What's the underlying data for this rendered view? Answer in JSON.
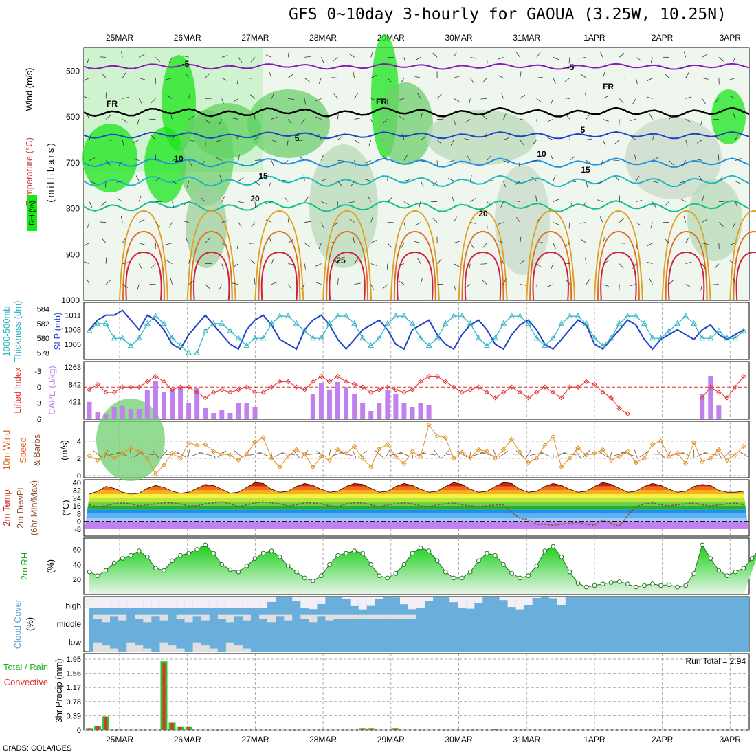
{
  "title": "GFS 0~10day 3-hourly for GAOUA (3.25W, 10.25N)",
  "credit": "GrADS: COLA/IGES",
  "dates": [
    "25MAR",
    "26MAR",
    "27MAR",
    "28MAR",
    "29MAR",
    "30MAR",
    "31MAR",
    "1APR",
    "2APR",
    "3APR"
  ],
  "run_total": "Run Total = 2.94",
  "colors": {
    "rh_green": "#19e619",
    "line_blue": "#2042c8",
    "line_cyan": "#2ab0c0",
    "cape_purple": "#c080f0",
    "li_red": "#e03030",
    "wind_orange": "#e09020",
    "temp_dew": "#905030",
    "cloud_blue": "#6aaedc"
  },
  "panels": {
    "profile": {
      "labels": [
        "Wind (m/s)",
        "Temperature (°C)",
        "RH (%)",
        "(millibars)"
      ],
      "yticks": [
        "500",
        "600",
        "700",
        "800",
        "900",
        "1000"
      ],
      "contour_labels": [
        "-5",
        "FR",
        "5",
        "10",
        "15",
        "20",
        "25"
      ]
    },
    "slp": {
      "labels": [
        "1000-500mb",
        "Thickness (dm)",
        "SLP (mb)"
      ],
      "left_ticks": [
        "584",
        "582",
        "580",
        "578"
      ],
      "right_ticks": [
        "1011",
        "1008",
        "1005"
      ]
    },
    "cape": {
      "labels": [
        "Lifted Index",
        "CAPE (J/kg)"
      ],
      "left_ticks": [
        "-3",
        "0",
        "3",
        "6"
      ],
      "right_ticks": [
        "1263",
        "842",
        "421"
      ]
    },
    "wind": {
      "labels": [
        "10m Wind",
        "Speed",
        "& Barbs",
        "(m/s)"
      ],
      "yticks": [
        "4",
        "2",
        "0"
      ]
    },
    "temp": {
      "labels": [
        "2m Temp",
        "2m DewPt",
        "(6hr Min/Max)",
        "(°C)"
      ],
      "yticks": [
        "40",
        "32",
        "24",
        "16",
        "8",
        "0",
        "-8"
      ]
    },
    "rh": {
      "labels": [
        "2m RH",
        "(%)"
      ],
      "yticks": [
        "60",
        "40",
        "20"
      ]
    },
    "cloud": {
      "labels": [
        "Cloud Cover",
        "(%)"
      ],
      "rows": [
        "high",
        "middle",
        "low"
      ]
    },
    "precip": {
      "labels": [
        "Total / Rain",
        "Convective",
        "3hr Precip (mm)"
      ],
      "yticks": [
        "1.95",
        "1.56",
        "1.17",
        "0.78",
        "0.39",
        "0"
      ]
    }
  },
  "chart_data": [
    {
      "type": "line",
      "title": "Thickness / SLP",
      "series": [
        {
          "name": "SLP",
          "values": [
            1008,
            1010,
            1011,
            1011,
            1012,
            1010,
            1008,
            1011,
            1010,
            1008,
            1005,
            1004,
            1007,
            1009,
            1011,
            1009,
            1007,
            1005,
            1004,
            1008,
            1010,
            1011,
            1009,
            1006,
            1005,
            1004,
            1008,
            1010,
            1011,
            1009,
            1006,
            1004,
            1006,
            1008,
            1009,
            1010,
            1008,
            1005,
            1004,
            1008,
            1009,
            1010,
            1007,
            1005,
            1004,
            1007,
            1009,
            1010,
            1008,
            1005,
            1004,
            1007,
            1009,
            1010,
            1008,
            1005,
            1004,
            1006,
            1008,
            1010,
            1009,
            1005,
            1004,
            1006,
            1008,
            1010,
            1009,
            1006,
            1004,
            1006,
            1007,
            1008,
            1007,
            1006,
            1008,
            1009,
            1007,
            1006,
            1007,
            1008
          ]
        },
        {
          "name": "Thickness",
          "values": [
            581,
            582,
            582,
            580,
            580,
            579,
            580,
            582,
            583,
            582,
            580,
            579,
            578,
            578,
            581,
            582,
            582,
            581,
            580,
            579,
            580,
            580,
            582,
            583,
            583,
            582,
            581,
            580,
            580,
            582,
            583,
            583,
            582,
            580,
            579,
            580,
            582,
            583,
            583,
            582,
            580,
            579,
            580,
            582,
            583,
            583,
            582,
            580,
            579,
            580,
            582,
            583,
            583,
            582,
            580,
            579,
            580,
            582,
            583,
            583,
            582,
            580,
            579,
            580,
            582,
            583,
            583,
            582,
            580,
            580,
            581,
            582,
            583,
            582,
            580,
            580,
            581,
            580,
            580,
            581
          ]
        }
      ]
    },
    {
      "type": "bar",
      "title": "CAPE / Lifted Index",
      "series": [
        {
          "name": "CAPE",
          "values": [
            420,
            180,
            120,
            300,
            320,
            250,
            250,
            700,
            920,
            650,
            700,
            750,
            400,
            750,
            280,
            150,
            220,
            150,
            400,
            400,
            300,
            0,
            0,
            0,
            0,
            0,
            0,
            600,
            870,
            720,
            900,
            780,
            600,
            400,
            200,
            400,
            700,
            600,
            400,
            300,
            400,
            350,
            0,
            0,
            0,
            0,
            0,
            0,
            0,
            0,
            0,
            0,
            0,
            0,
            0,
            0,
            0,
            0,
            0,
            0,
            0,
            0,
            0,
            0,
            0,
            0,
            0,
            0,
            0,
            0,
            0,
            0,
            0,
            0,
            600,
            1050,
            330,
            0,
            0,
            0,
            0,
            600
          ]
        },
        {
          "name": "Lifted Index",
          "values": [
            0.5,
            -0.5,
            1,
            1,
            0,
            0,
            0,
            -1,
            -2,
            -1,
            0.5,
            0,
            0,
            1,
            2,
            1,
            0.5,
            1,
            0.5,
            0,
            1,
            1,
            0,
            -1,
            -1,
            0,
            0.5,
            -1,
            -2,
            -1,
            -2,
            -1,
            -0.5,
            0,
            1,
            0.5,
            0,
            0.5,
            1,
            0.5,
            -1,
            -2,
            -2,
            -1,
            0,
            1,
            0.5,
            0,
            1,
            2,
            1,
            0,
            1,
            2,
            1,
            0,
            1,
            2,
            0,
            0,
            -1,
            -0.5,
            1,
            2,
            4,
            5,
            6,
            6,
            6,
            6,
            6,
            6,
            6,
            6,
            2,
            0,
            1,
            2,
            0,
            -2
          ]
        }
      ]
    },
    {
      "type": "line",
      "title": "10m Wind Speed",
      "series": [
        {
          "name": "Speed",
          "values": [
            2.3,
            1.8,
            2.5,
            2.0,
            2.6,
            3.2,
            2.8,
            2.0,
            0.2,
            1.2,
            2.6,
            2.0,
            3.8,
            3.5,
            3.6,
            2.8,
            2.5,
            2.4,
            1.8,
            2.5,
            3.9,
            4.4,
            2.0,
            1.0,
            2.3,
            3.0,
            2.5,
            1.0,
            2.2,
            1.8,
            3.0,
            2.6,
            3.4,
            2.0,
            1.0,
            3.1,
            3.6,
            2.2,
            1.4,
            2.8,
            2.2,
            5.9,
            4.6,
            4.4,
            2.0,
            2.7,
            2.1,
            3.0,
            2.8,
            2.0,
            3.0,
            4.2,
            2.7,
            1.5,
            2.0,
            3.5,
            4.5,
            1.0,
            2.0,
            3.2,
            2.4,
            2.6,
            3.0,
            1.8,
            2.2,
            2.8,
            1.5,
            2.0,
            3.6,
            4.0,
            2.2,
            2.6,
            1.4,
            3.8,
            1.6,
            2.0,
            3.0,
            1.8,
            2.4,
            3.4
          ]
        }
      ]
    },
    {
      "type": "line",
      "title": "2m Temp / DewPt",
      "series": [
        {
          "name": "Temp",
          "values": [
            28,
            31,
            36,
            34,
            30,
            28,
            29,
            34,
            37,
            35,
            31,
            29,
            30,
            34,
            38,
            37,
            33,
            29,
            30,
            35,
            40,
            39,
            33,
            30,
            31,
            36,
            39,
            37,
            33,
            30,
            31,
            36,
            39,
            38,
            34,
            30,
            31,
            36,
            39,
            37,
            33,
            30,
            31,
            36,
            40,
            38,
            33,
            30,
            31,
            36,
            40,
            39,
            33,
            30,
            31,
            36,
            39,
            37,
            33,
            30,
            31,
            36,
            40,
            38,
            34,
            30,
            31,
            36,
            39,
            37,
            33,
            30,
            31,
            36,
            38,
            37,
            32,
            30,
            30,
            31
          ]
        },
        {
          "name": "DewPt",
          "values": [
            17,
            15,
            16,
            18,
            19,
            18,
            16,
            17,
            18,
            19,
            19,
            18,
            16,
            16,
            18,
            19,
            20,
            18,
            15,
            17,
            19,
            20,
            19,
            18,
            16,
            17,
            19,
            19,
            18,
            16,
            15,
            18,
            19,
            19,
            17,
            15,
            17,
            18,
            19,
            18,
            16,
            15,
            17,
            18,
            19,
            17,
            16,
            15,
            16,
            17,
            17,
            9,
            3,
            2,
            -3,
            -3,
            -4,
            -3,
            -2,
            -1,
            -3,
            -4,
            2,
            -2,
            -5,
            6,
            15,
            18,
            19,
            17,
            16,
            17,
            18,
            19,
            17,
            16,
            17,
            18,
            19,
            17
          ]
        }
      ]
    },
    {
      "type": "area",
      "title": "2m RH",
      "series": [
        {
          "name": "RH",
          "values": [
            30,
            25,
            32,
            42,
            48,
            52,
            58,
            50,
            35,
            32,
            45,
            52,
            55,
            60,
            66,
            55,
            40,
            33,
            30,
            38,
            48,
            55,
            58,
            50,
            38,
            30,
            22,
            18,
            25,
            40,
            52,
            55,
            58,
            55,
            40,
            25,
            22,
            28,
            40,
            55,
            62,
            58,
            45,
            30,
            22,
            22,
            30,
            45,
            55,
            52,
            40,
            28,
            22,
            25,
            38,
            58,
            64,
            50,
            30,
            15,
            10,
            12,
            14,
            16,
            17,
            14,
            10,
            12,
            14,
            12,
            13,
            10,
            12,
            28,
            66,
            48,
            32,
            25,
            30,
            35,
            48,
            62
          ]
        }
      ]
    },
    {
      "type": "bar",
      "title": "3hr Precip",
      "ylim": [
        0,
        1.95
      ],
      "series": [
        {
          "name": "Total",
          "values": [
            0.05,
            0.1,
            0.37,
            0,
            0,
            0,
            0,
            0,
            0,
            1.89,
            0.2,
            0.08,
            0.08,
            0,
            0,
            0,
            0,
            0,
            0,
            0,
            0,
            0,
            0,
            0,
            0,
            0,
            0,
            0,
            0,
            0,
            0,
            0,
            0,
            0.05,
            0.05,
            0,
            0,
            0.05,
            0,
            0,
            0,
            0,
            0,
            0,
            0,
            0,
            0,
            0,
            0,
            0.03,
            0,
            0,
            0,
            0,
            0,
            0,
            0,
            0,
            0,
            0,
            0,
            0,
            0,
            0,
            0,
            0,
            0,
            0,
            0,
            0,
            0,
            0,
            0,
            0,
            0,
            0,
            0,
            0,
            0,
            0
          ]
        }
      ]
    }
  ]
}
